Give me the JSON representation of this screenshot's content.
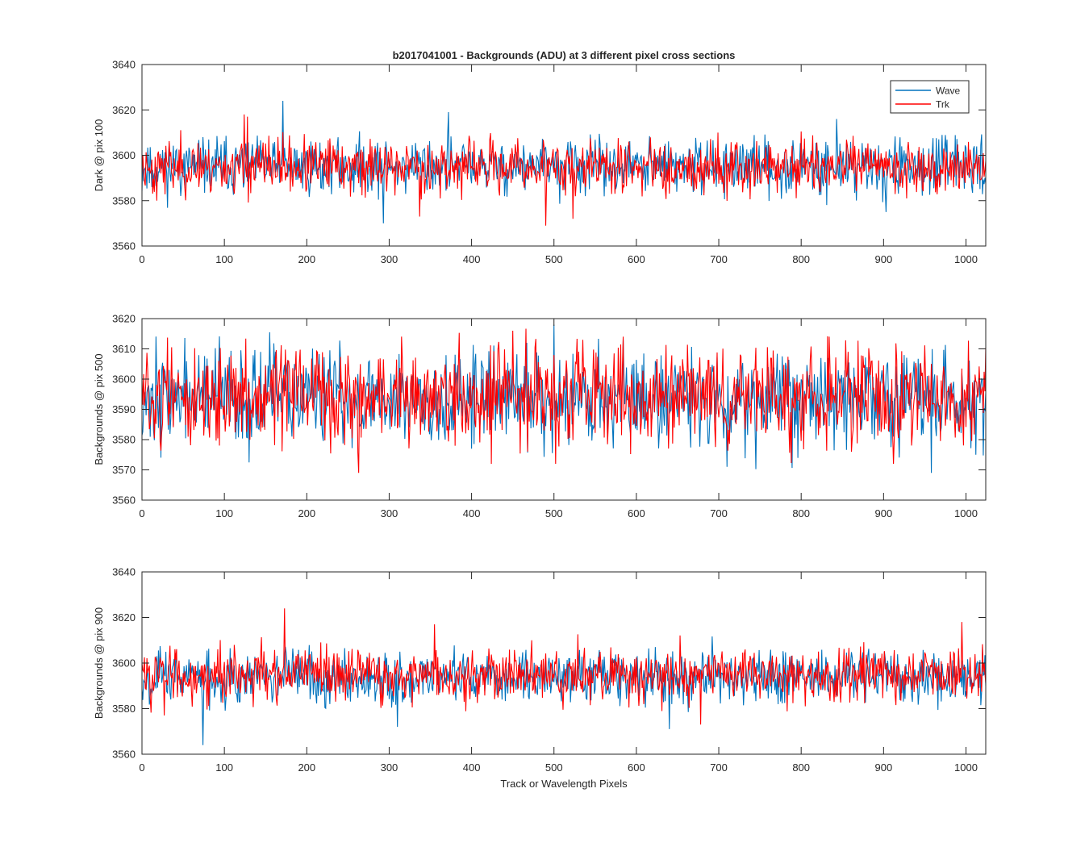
{
  "figure": {
    "title": "b2017041001 - Backgrounds (ADU) at 3 different pixel cross sections"
  },
  "chart_data": [
    {
      "type": "line",
      "title": "b2017041001 - Backgrounds (ADU) at 3 different pixel cross sections",
      "xlabel": "",
      "ylabel": "Dark @ pix 100",
      "xlim": [
        0,
        1024
      ],
      "ylim": [
        3560,
        3640
      ],
      "xticks": [
        "0",
        "100",
        "200",
        "300",
        "400",
        "500",
        "600",
        "700",
        "800",
        "900",
        "1000"
      ],
      "yticks": [
        "3560",
        "3580",
        "3600",
        "3620",
        "3640"
      ],
      "legend": {
        "position": "top-right",
        "entries": [
          "Wave",
          "Trk"
        ]
      },
      "series": [
        {
          "name": "Wave",
          "color": "#0072BD",
          "mean": 3595,
          "amplitude": 6,
          "seed": 11,
          "spikes": [
            {
              "x": 171,
              "y": 3624
            },
            {
              "x": 293,
              "y": 3570
            },
            {
              "x": 372,
              "y": 3619
            },
            {
              "x": 843,
              "y": 3616
            },
            {
              "x": 903,
              "y": 3575
            },
            {
              "x": 12,
              "y": 3586
            }
          ]
        },
        {
          "name": "Trk",
          "color": "#FF0000",
          "mean": 3595,
          "amplitude": 6,
          "seed": 23,
          "spikes": [
            {
              "x": 124,
              "y": 3618
            },
            {
              "x": 128,
              "y": 3617
            },
            {
              "x": 337,
              "y": 3573
            },
            {
              "x": 490,
              "y": 3569
            },
            {
              "x": 523,
              "y": 3572
            },
            {
              "x": 18,
              "y": 3580
            }
          ]
        }
      ]
    },
    {
      "type": "line",
      "xlabel": "",
      "ylabel": "Backgrounds @ pix 500",
      "xlim": [
        0,
        1024
      ],
      "ylim": [
        3560,
        3620
      ],
      "xticks": [
        "0",
        "100",
        "200",
        "300",
        "400",
        "500",
        "600",
        "700",
        "800",
        "900",
        "1000"
      ],
      "yticks": [
        "3560",
        "3570",
        "3580",
        "3590",
        "3600",
        "3610",
        "3620"
      ],
      "series": [
        {
          "name": "Wave",
          "color": "#0072BD",
          "mean": 3594,
          "amplitude": 8,
          "seed": 37,
          "spikes": [
            {
              "x": 500,
              "y": 3618
            },
            {
              "x": 400,
              "y": 3577
            },
            {
              "x": 710,
              "y": 3571
            },
            {
              "x": 958,
              "y": 3569
            },
            {
              "x": 1012,
              "y": 3575
            }
          ]
        },
        {
          "name": "Trk",
          "color": "#FF0000",
          "mean": 3594,
          "amplitude": 8,
          "seed": 51,
          "spikes": [
            {
              "x": 263,
              "y": 3569
            },
            {
              "x": 450,
              "y": 3616
            },
            {
              "x": 502,
              "y": 3572
            },
            {
              "x": 535,
              "y": 3613
            },
            {
              "x": 912,
              "y": 3572
            }
          ]
        }
      ]
    },
    {
      "type": "line",
      "xlabel": "Track or Wavelength Pixels",
      "ylabel": "Backgrounds @ pix 900",
      "xlim": [
        0,
        1024
      ],
      "ylim": [
        3560,
        3640
      ],
      "xticks": [
        "0",
        "100",
        "200",
        "300",
        "400",
        "500",
        "600",
        "700",
        "800",
        "900",
        "1000"
      ],
      "yticks": [
        "3560",
        "3580",
        "3600",
        "3620",
        "3640"
      ],
      "series": [
        {
          "name": "Wave",
          "color": "#0072BD",
          "mean": 3594,
          "amplitude": 6,
          "seed": 67,
          "spikes": [
            {
              "x": 74,
              "y": 3564
            },
            {
              "x": 310,
              "y": 3572
            },
            {
              "x": 640,
              "y": 3571
            },
            {
              "x": 1020,
              "y": 3607
            }
          ]
        },
        {
          "name": "Trk",
          "color": "#FF0000",
          "mean": 3595,
          "amplitude": 6,
          "seed": 83,
          "spikes": [
            {
              "x": 173,
              "y": 3624
            },
            {
              "x": 355,
              "y": 3617
            },
            {
              "x": 995,
              "y": 3618
            },
            {
              "x": 678,
              "y": 3573
            },
            {
              "x": 27,
              "y": 3577
            }
          ]
        }
      ]
    }
  ]
}
